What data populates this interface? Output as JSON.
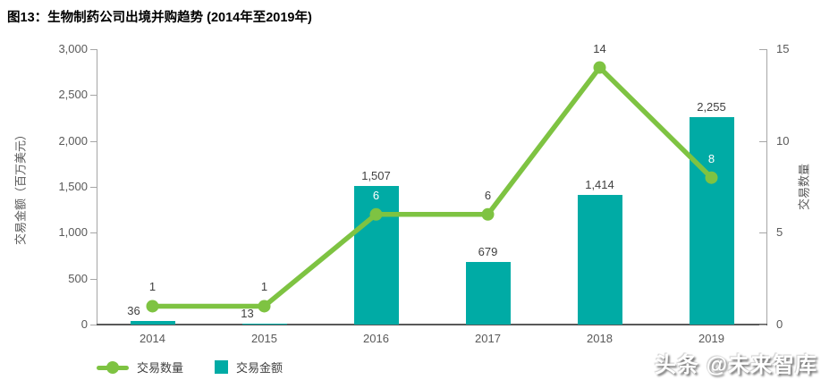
{
  "title": "图13：生物制药公司出境并购趋势 (2014年至2019年)",
  "watermark": "头条 @未来智库",
  "chart_data": {
    "type": "combo-bar-line",
    "categories": [
      "2014",
      "2015",
      "2016",
      "2017",
      "2018",
      "2019"
    ],
    "series": [
      {
        "name": "交易金额",
        "type": "bar",
        "axis": "left",
        "color": "#00aba5",
        "values": [
          36,
          13,
          1507,
          679,
          1414,
          2255
        ],
        "labels": [
          "36",
          "13",
          "1,507",
          "679",
          "1,414",
          "2,255"
        ]
      },
      {
        "name": "交易数量",
        "type": "line",
        "axis": "right",
        "color": "#7ec342",
        "values": [
          1,
          1,
          6,
          6,
          14,
          8
        ],
        "labels": [
          "1",
          "1",
          "6",
          "6",
          "14",
          "8"
        ]
      }
    ],
    "left_axis": {
      "title": "交易金额（百万美元）",
      "min": 0,
      "max": 3000,
      "ticks": [
        "0",
        "500",
        "1,000",
        "1,500",
        "2,000",
        "2,500",
        "3,000"
      ]
    },
    "right_axis": {
      "title": "交易数量",
      "min": 0,
      "max": 15,
      "ticks": [
        "0",
        "5",
        "10",
        "15"
      ]
    },
    "legend": [
      {
        "label": "交易数量",
        "marker": "line"
      },
      {
        "label": "交易金额",
        "marker": "bar"
      }
    ],
    "grid": "off",
    "legend_position": "bottom-left"
  }
}
